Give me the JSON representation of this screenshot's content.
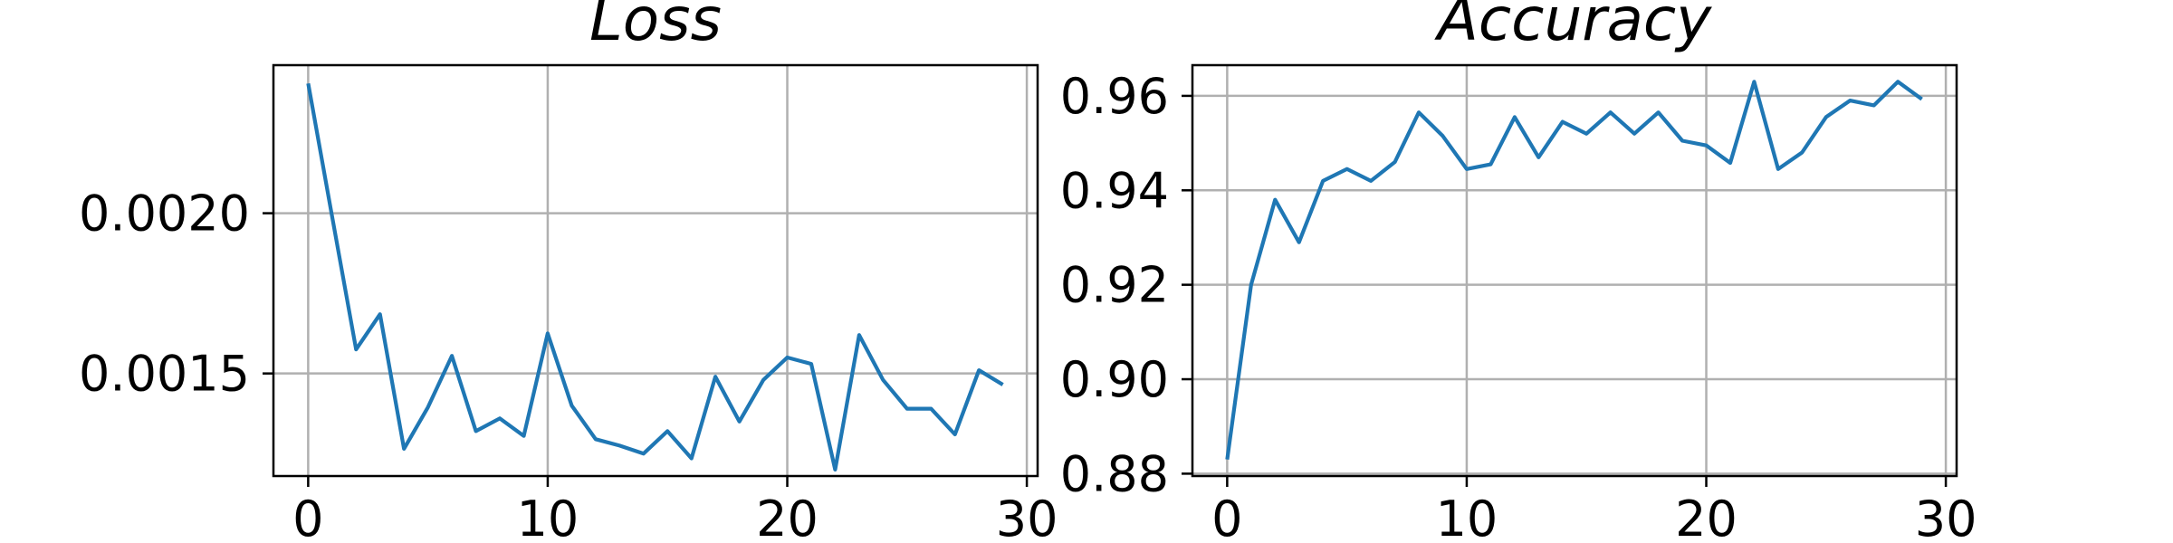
{
  "chart_data": [
    {
      "type": "line",
      "title": "Loss",
      "xlabel": "",
      "ylabel": "",
      "xlim": [
        -1.45,
        30.45
      ],
      "ylim": [
        0.00118,
        0.002462
      ],
      "xticks": [
        0,
        10,
        20,
        30
      ],
      "xtick_labels": [
        "0",
        "10",
        "20",
        "30"
      ],
      "yticks": [
        0.0015,
        0.002
      ],
      "ytick_labels": [
        "0.0015",
        "0.0020"
      ],
      "grid": true,
      "color": "#1f77b4",
      "x": [
        0,
        1,
        2,
        3,
        4,
        5,
        6,
        7,
        8,
        9,
        10,
        11,
        12,
        13,
        14,
        15,
        16,
        17,
        18,
        19,
        20,
        21,
        22,
        23,
        24,
        25,
        26,
        27,
        28,
        29
      ],
      "values": [
        0.002405,
        0.00199,
        0.001575,
        0.001685,
        0.001265,
        0.001395,
        0.001555,
        0.00132,
        0.00136,
        0.001305,
        0.001625,
        0.0014,
        0.001295,
        0.001275,
        0.00125,
        0.00132,
        0.001235,
        0.00149,
        0.00135,
        0.00148,
        0.00155,
        0.00153,
        0.0012,
        0.00162,
        0.00148,
        0.00139,
        0.00139,
        0.00131,
        0.00151,
        0.001465
      ]
    },
    {
      "type": "line",
      "title": "Accuracy",
      "xlabel": "",
      "ylabel": "",
      "xlim": [
        -1.45,
        30.45
      ],
      "ylim": [
        0.8795,
        0.9665
      ],
      "xticks": [
        0,
        10,
        20,
        30
      ],
      "xtick_labels": [
        "0",
        "10",
        "20",
        "30"
      ],
      "yticks": [
        0.88,
        0.9,
        0.92,
        0.94,
        0.96
      ],
      "ytick_labels": [
        "0.88",
        "0.90",
        "0.92",
        "0.94",
        "0.96"
      ],
      "grid": true,
      "color": "#1f77b4",
      "x": [
        0,
        1,
        2,
        3,
        4,
        5,
        6,
        7,
        8,
        9,
        10,
        11,
        12,
        13,
        14,
        15,
        16,
        17,
        18,
        19,
        20,
        21,
        22,
        23,
        24,
        25,
        26,
        27,
        28,
        29
      ],
      "values": [
        0.883,
        0.92,
        0.938,
        0.929,
        0.942,
        0.9445,
        0.942,
        0.946,
        0.9565,
        0.9515,
        0.9445,
        0.9455,
        0.9555,
        0.947,
        0.9545,
        0.952,
        0.9565,
        0.952,
        0.9565,
        0.9505,
        0.9495,
        0.9458,
        0.963,
        0.9445,
        0.948,
        0.9555,
        0.959,
        0.958,
        0.963,
        0.9593
      ]
    }
  ]
}
